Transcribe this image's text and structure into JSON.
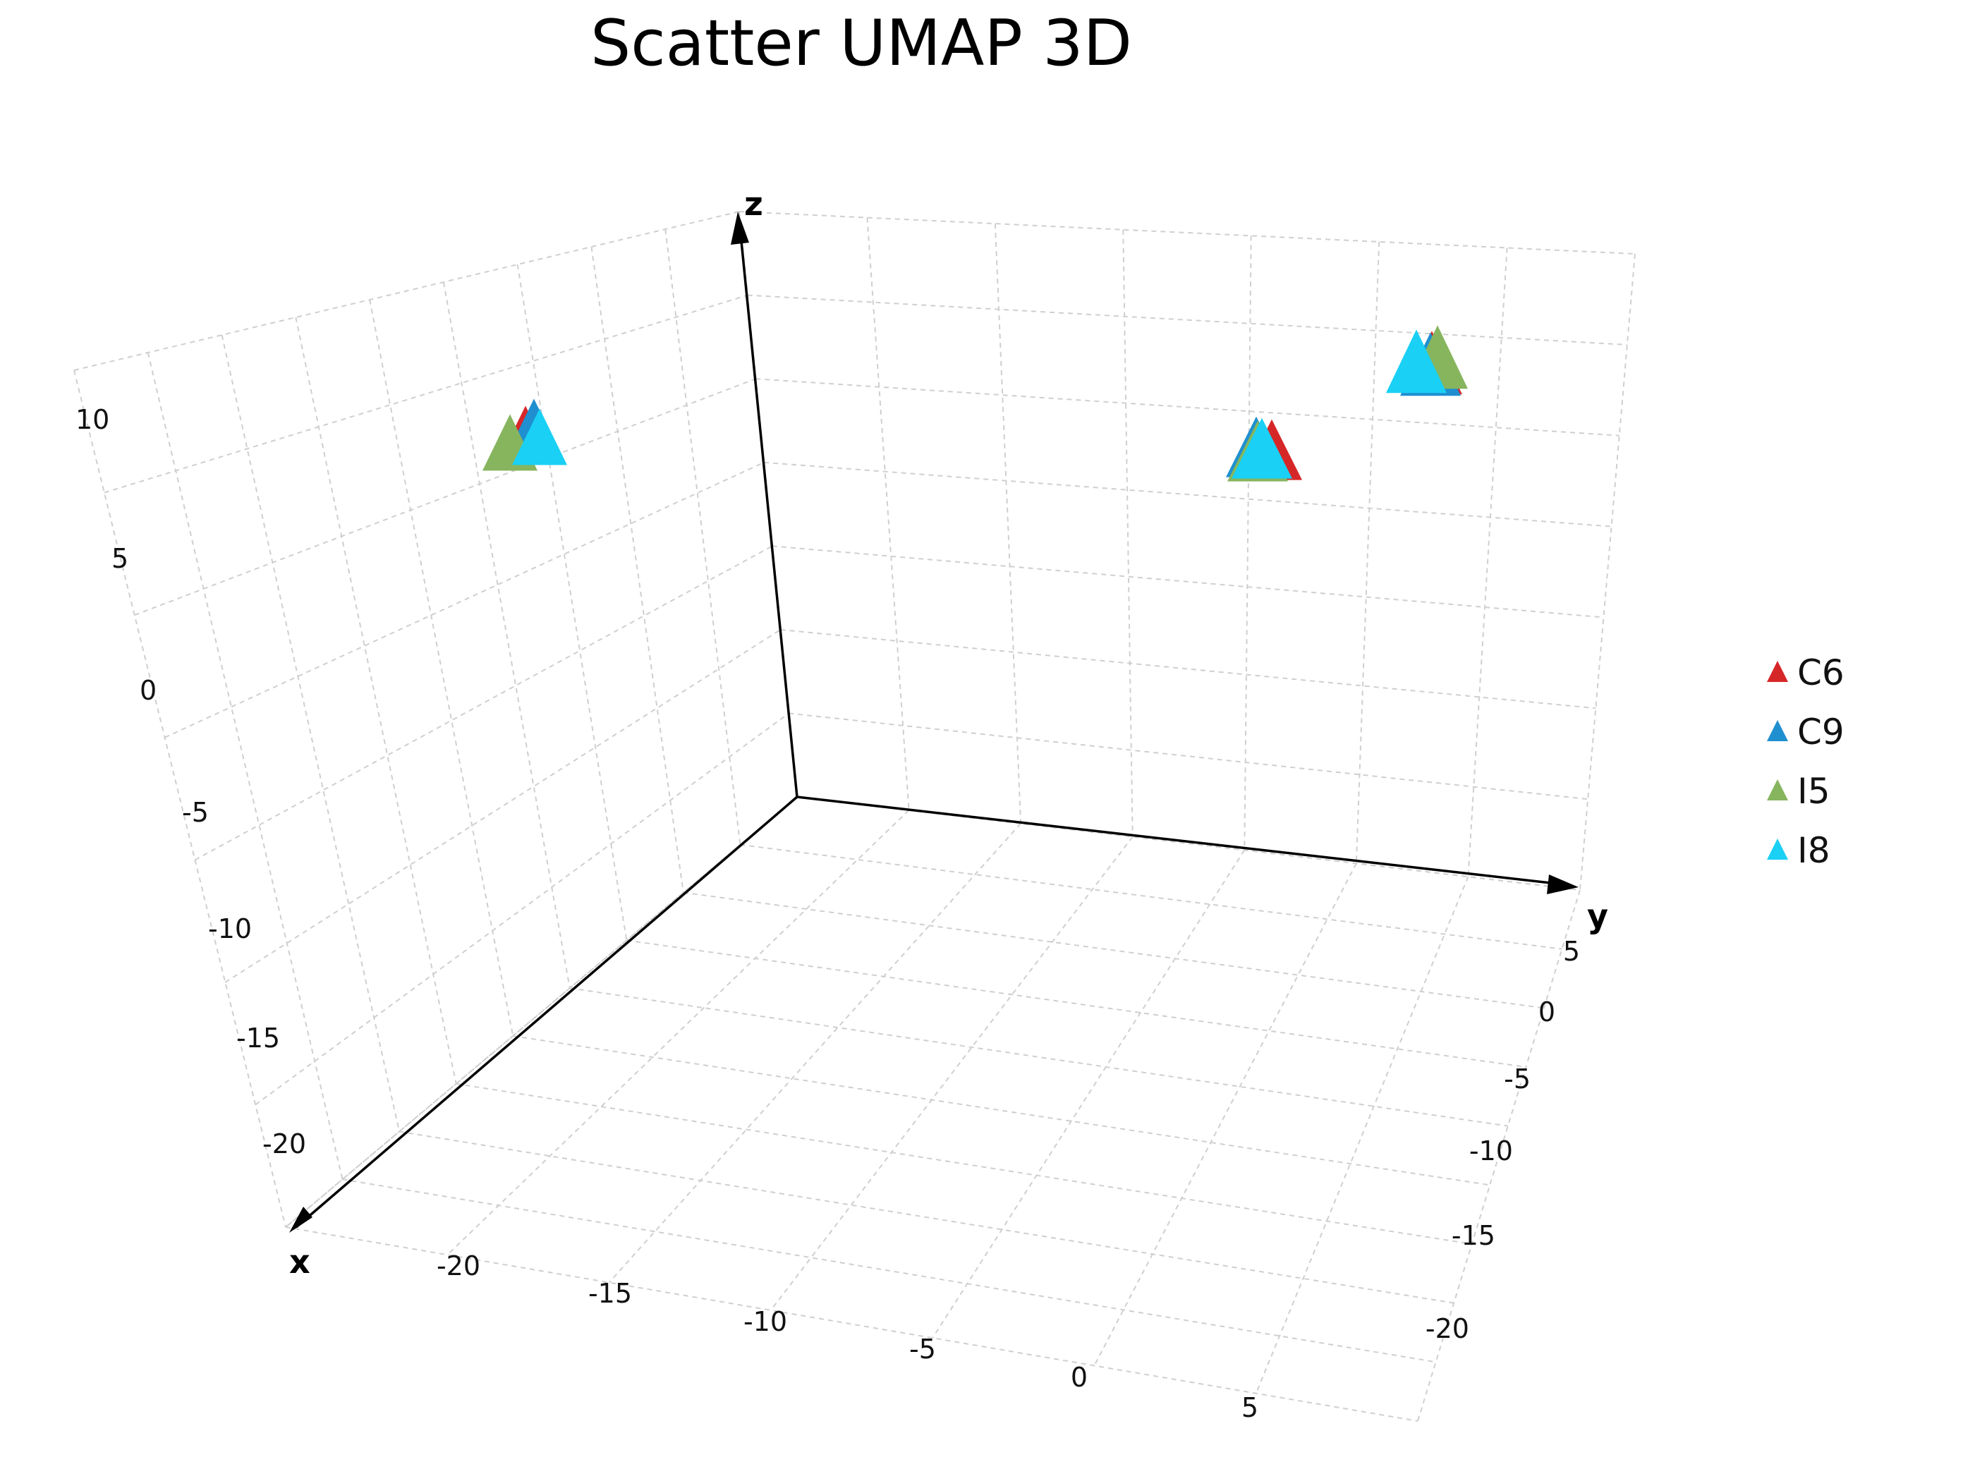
{
  "chart_data": {
    "type": "scatter",
    "title": "Scatter UMAP 3D",
    "axes": {
      "x": {
        "label": "x",
        "ticks": [
          -20,
          -15,
          -10,
          -5,
          0,
          5
        ]
      },
      "y": {
        "label": "y",
        "ticks": [
          5,
          0,
          -5,
          -10,
          -15,
          -20
        ]
      },
      "z": {
        "label": "z",
        "ticks": [
          10,
          5,
          0,
          -5,
          -10,
          -15,
          -20
        ]
      }
    },
    "grid": true,
    "legend": {
      "placement": "right"
    },
    "marker": "triangle",
    "series": [
      {
        "name": "C6",
        "color": "#d62728",
        "points": [
          {
            "x": -12,
            "y": -18,
            "z": 5
          },
          {
            "x": -3,
            "y": 4,
            "z": 0
          },
          {
            "x": 2,
            "y": -8,
            "z": 3
          }
        ]
      },
      {
        "name": "C9",
        "color": "#1f8fd0",
        "points": [
          {
            "x": -12,
            "y": -18,
            "z": 5
          },
          {
            "x": -3,
            "y": 4,
            "z": 0
          },
          {
            "x": 2,
            "y": -8,
            "z": 3
          }
        ]
      },
      {
        "name": "I5",
        "color": "#86b55e",
        "points": [
          {
            "x": -12,
            "y": -18,
            "z": 5
          },
          {
            "x": -3,
            "y": 4,
            "z": 0
          },
          {
            "x": 2,
            "y": -8,
            "z": 3
          }
        ]
      },
      {
        "name": "I8",
        "color": "#1ad0f5",
        "points": [
          {
            "x": -12,
            "y": -18,
            "z": 5
          },
          {
            "x": -3,
            "y": 4,
            "z": 0
          },
          {
            "x": 2,
            "y": -8,
            "z": 3
          }
        ]
      }
    ]
  }
}
